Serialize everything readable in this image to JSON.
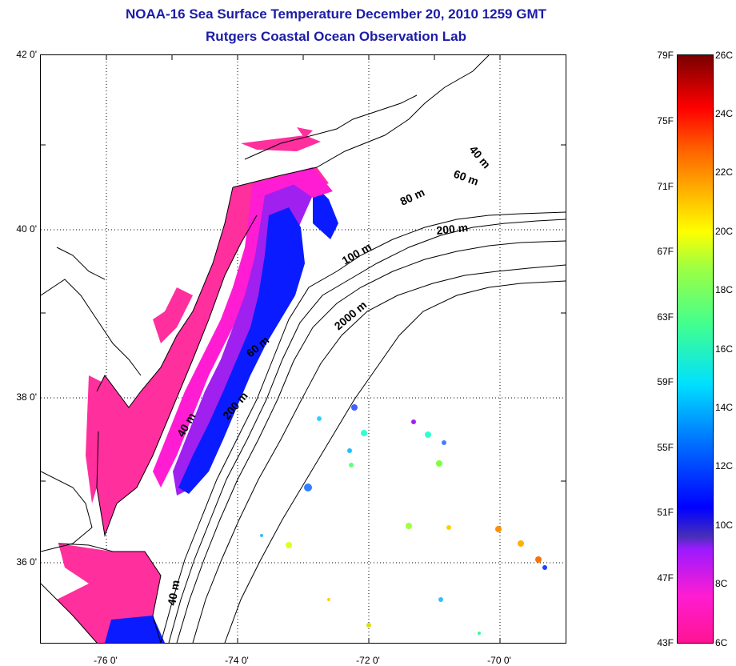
{
  "title": {
    "line1": "NOAA-16 Sea Surface Temperature December 20, 2010 1259 GMT",
    "line2": "Rutgers Coastal Ocean Observation Lab"
  },
  "map": {
    "lat_labels": [
      "42 0'",
      "40 0'",
      "38 0'",
      "36 0'"
    ],
    "lon_labels": [
      "-76 0'",
      "-74 0'",
      "-72 0'",
      "-70 0'"
    ],
    "contour_labels": [
      "40 m",
      "60 m",
      "80 m",
      "200 m",
      "100 m",
      "2000 m",
      "60 m",
      "40 m",
      "200 m",
      "40 m"
    ],
    "colors": {
      "land": "#ffffff",
      "coastline": "#000000",
      "warm_pink": "#ff2f9e",
      "magenta": "#ff1cd2",
      "purple": "#a020f0",
      "blue": "#0a1cff"
    }
  },
  "colorbar": {
    "fahrenheit_labels": [
      "79F",
      "75F",
      "71F",
      "67F",
      "63F",
      "59F",
      "55F",
      "51F",
      "47F",
      "43F"
    ],
    "celsius_labels": [
      "26C",
      "24C",
      "22C",
      "20C",
      "18C",
      "16C",
      "14C",
      "12C",
      "10C",
      "8C",
      "6C"
    ]
  }
}
